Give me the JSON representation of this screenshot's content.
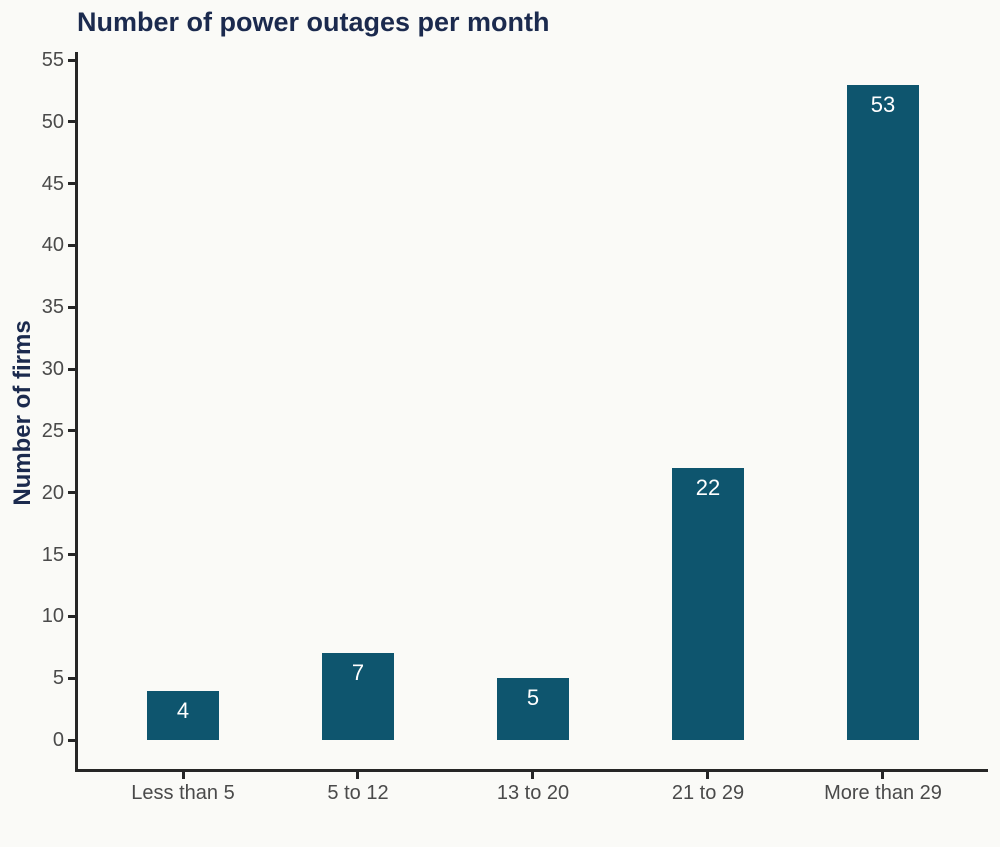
{
  "chart_data": {
    "type": "bar",
    "title": "Number of power outages per month",
    "categories": [
      "Less than 5",
      "5 to 12",
      "13 to 20",
      "21 to 29",
      "More than 29"
    ],
    "values": [
      4,
      7,
      5,
      22,
      53
    ],
    "xlabel": "",
    "ylabel": "Number of firms",
    "ylim": [
      0,
      55
    ],
    "ytick_step": 5,
    "grid": false,
    "legend": "none",
    "value_labels": "inside-top",
    "colors": {
      "bar": "#0e556e",
      "title": "#1b2a4e",
      "axis_line": "#262626",
      "tick_label": "#4a4a4a",
      "value_label": "#ffffff",
      "background": "#fafaf7"
    }
  }
}
